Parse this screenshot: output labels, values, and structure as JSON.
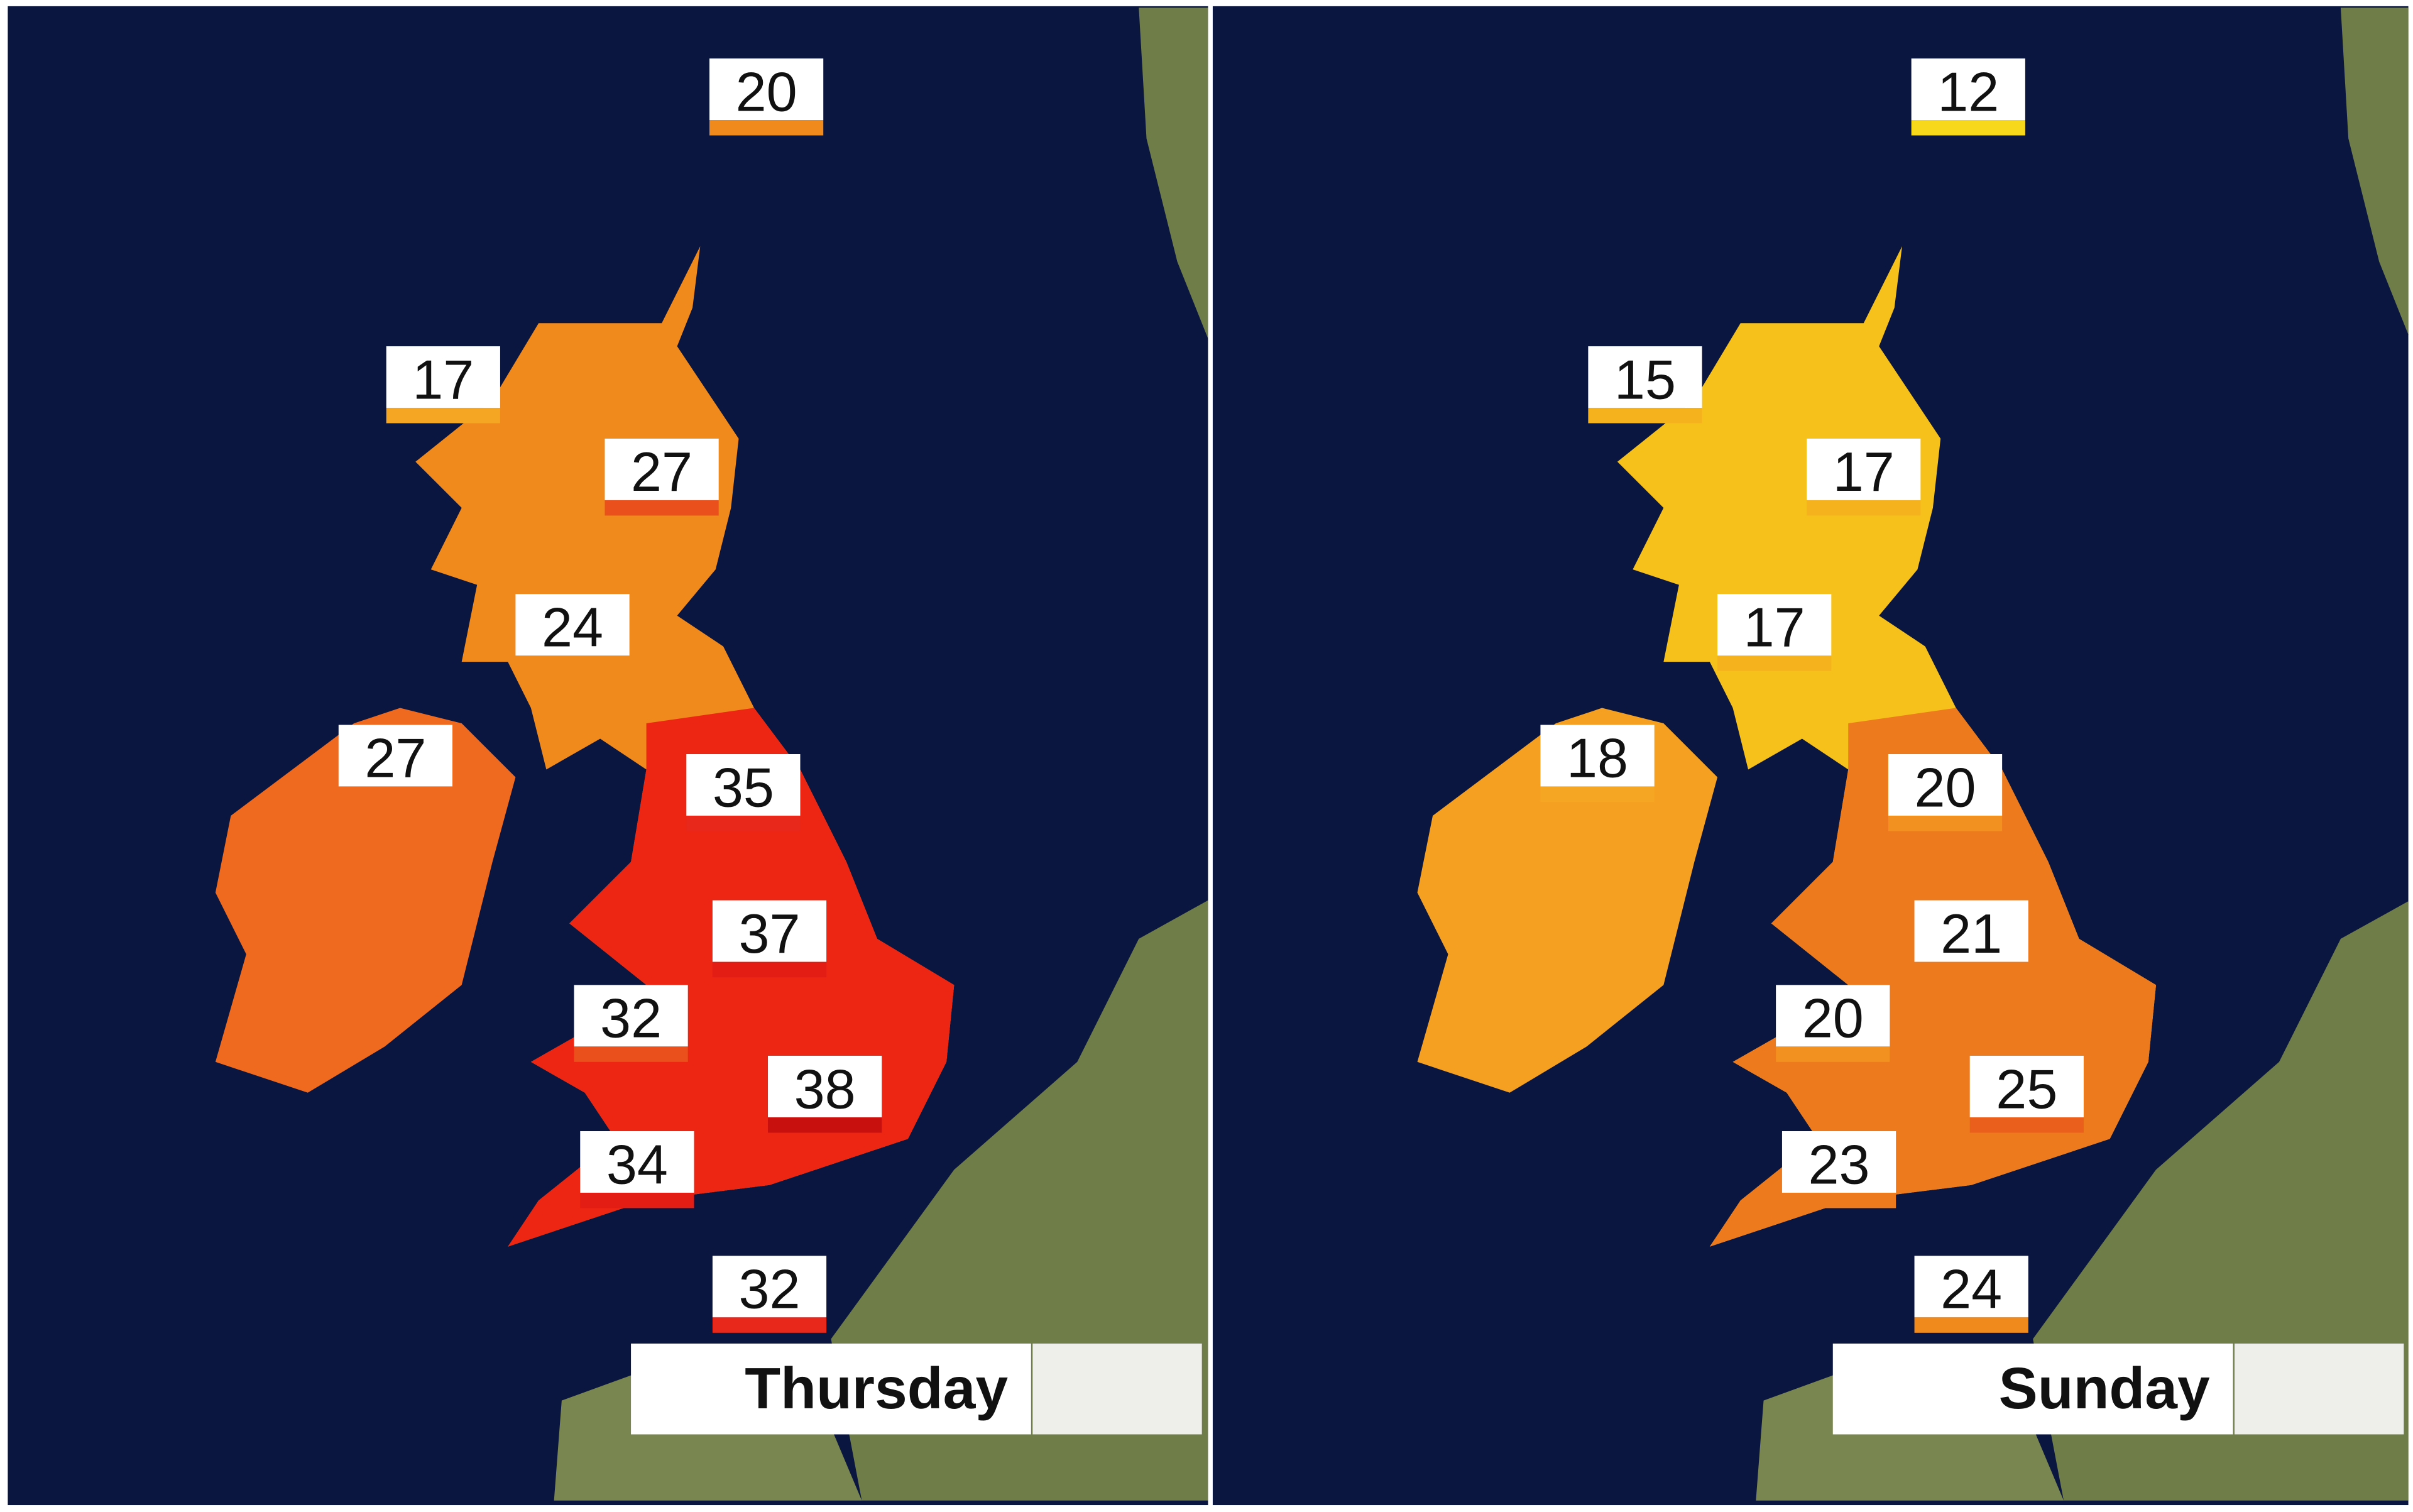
{
  "panels": [
    {
      "day": "Thursday",
      "temperatures": [
        {
          "value": 20,
          "color": "#f08a1c"
        },
        {
          "value": 17,
          "color": "#f5a623"
        },
        {
          "value": 27,
          "color": "#e9501c"
        },
        {
          "value": 24,
          "color": "#f08a1c"
        },
        {
          "value": 27,
          "color": "#ef6a1e"
        },
        {
          "value": 35,
          "color": "#e8281a"
        },
        {
          "value": 37,
          "color": "#e31c14"
        },
        {
          "value": 32,
          "color": "#e9501c"
        },
        {
          "value": 38,
          "color": "#c8100e"
        },
        {
          "value": 34,
          "color": "#e31c14"
        },
        {
          "value": 32,
          "color": "#e8281a"
        }
      ]
    },
    {
      "day": "Sunday",
      "temperatures": [
        {
          "value": 12,
          "color": "#f7d81a"
        },
        {
          "value": 15,
          "color": "#f5b21c"
        },
        {
          "value": 17,
          "color": "#f5b21c"
        },
        {
          "value": 17,
          "color": "#f5b21c"
        },
        {
          "value": 18,
          "color": "#f5a623"
        },
        {
          "value": 20,
          "color": "#f29020"
        },
        {
          "value": 21,
          "color": "#ee7a1e"
        },
        {
          "value": 20,
          "color": "#f29020"
        },
        {
          "value": 25,
          "color": "#ea5f1c"
        },
        {
          "value": 23,
          "color": "#ee7a1e"
        },
        {
          "value": 24,
          "color": "#f08a1c"
        }
      ]
    }
  ]
}
